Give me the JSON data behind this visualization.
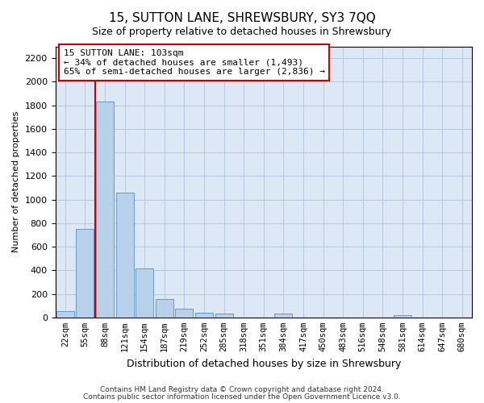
{
  "title": "15, SUTTON LANE, SHREWSBURY, SY3 7QQ",
  "subtitle": "Size of property relative to detached houses in Shrewsbury",
  "xlabel": "Distribution of detached houses by size in Shrewsbury",
  "ylabel": "Number of detached properties",
  "footnote1": "Contains HM Land Registry data © Crown copyright and database right 2024.",
  "footnote2": "Contains public sector information licensed under the Open Government Licence v3.0.",
  "annotation_line1": "15 SUTTON LANE: 103sqm",
  "annotation_line2": "← 34% of detached houses are smaller (1,493)",
  "annotation_line3": "65% of semi-detached houses are larger (2,836) →",
  "bar_color": "#b8d0ea",
  "bar_edge_color": "#6699cc",
  "highlight_color": "#cc0000",
  "background_color": "#ffffff",
  "plot_bg_color": "#dce8f5",
  "grid_color": "#b0c4de",
  "categories": [
    "22sqm",
    "55sqm",
    "88sqm",
    "121sqm",
    "154sqm",
    "187sqm",
    "219sqm",
    "252sqm",
    "285sqm",
    "318sqm",
    "351sqm",
    "384sqm",
    "417sqm",
    "450sqm",
    "483sqm",
    "516sqm",
    "548sqm",
    "581sqm",
    "614sqm",
    "647sqm",
    "680sqm"
  ],
  "values": [
    55,
    750,
    1830,
    1060,
    415,
    155,
    75,
    40,
    30,
    0,
    0,
    30,
    0,
    0,
    0,
    0,
    0,
    20,
    0,
    0,
    0
  ],
  "ylim": [
    0,
    2300
  ],
  "yticks": [
    0,
    200,
    400,
    600,
    800,
    1000,
    1200,
    1400,
    1600,
    1800,
    2000,
    2200
  ],
  "red_line_x": 1.5,
  "title_fontsize": 11,
  "subtitle_fontsize": 9,
  "ylabel_fontsize": 8,
  "xlabel_fontsize": 9
}
